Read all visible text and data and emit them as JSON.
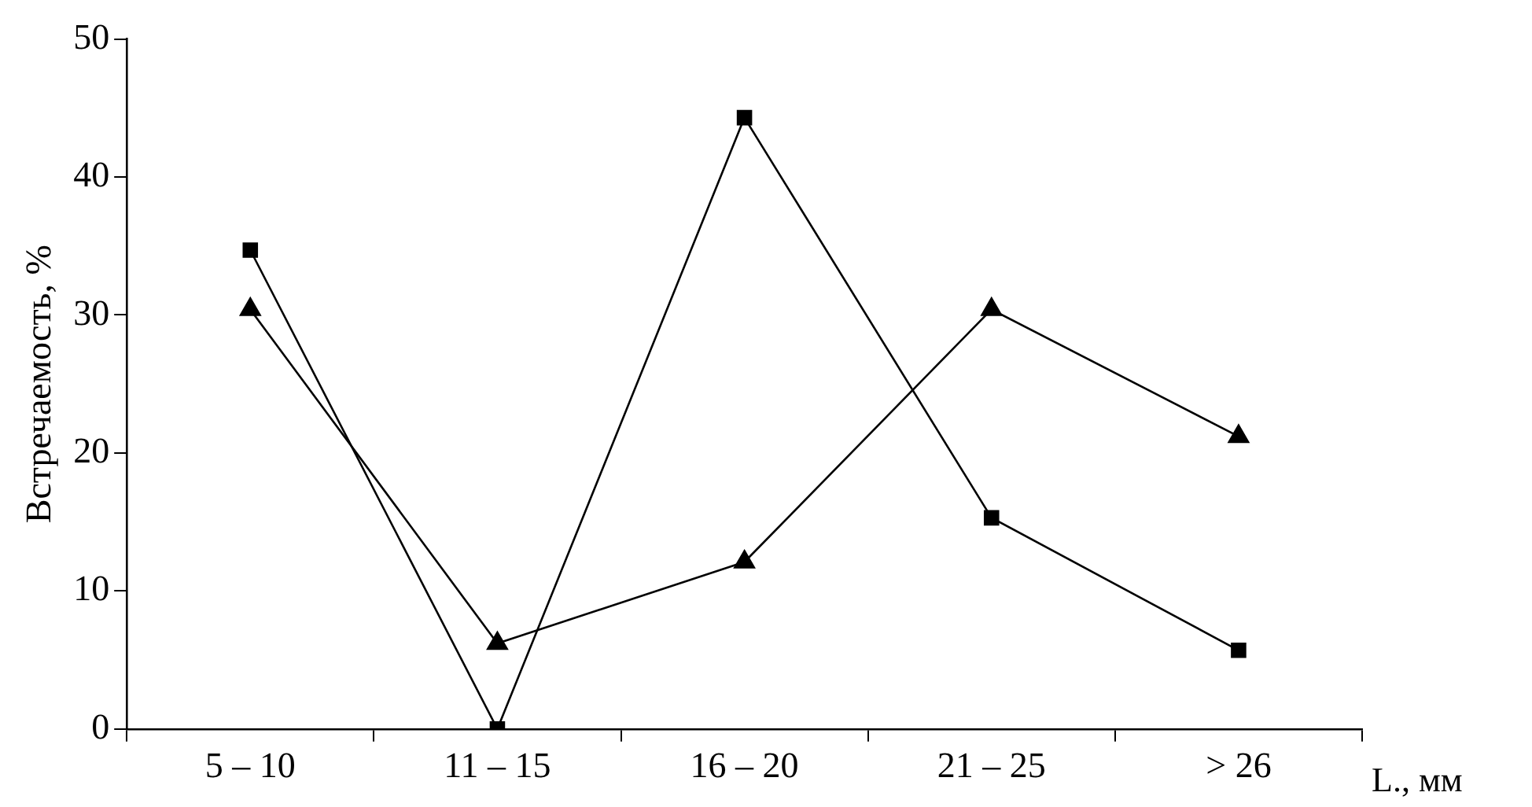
{
  "chart_data": {
    "type": "line",
    "xlabel": "L., мм",
    "ylabel": "Встречаемость, %",
    "categories": [
      "5 – 10",
      "11 – 15",
      "16 – 20",
      "21 – 25",
      "> 26"
    ],
    "series": [
      {
        "color": "#000000",
        "marker": "square",
        "values": [
          34.7,
          0,
          44.3,
          15.3,
          5.7
        ]
      },
      {
        "color": "#000000",
        "marker": "triangle",
        "values": [
          30.4,
          6.2,
          12.1,
          30.4,
          21.2
        ]
      }
    ],
    "ylim": [
      0,
      50
    ],
    "yticks": [
      0,
      10,
      20,
      30,
      40,
      50
    ],
    "grid": false,
    "legend": false
  }
}
